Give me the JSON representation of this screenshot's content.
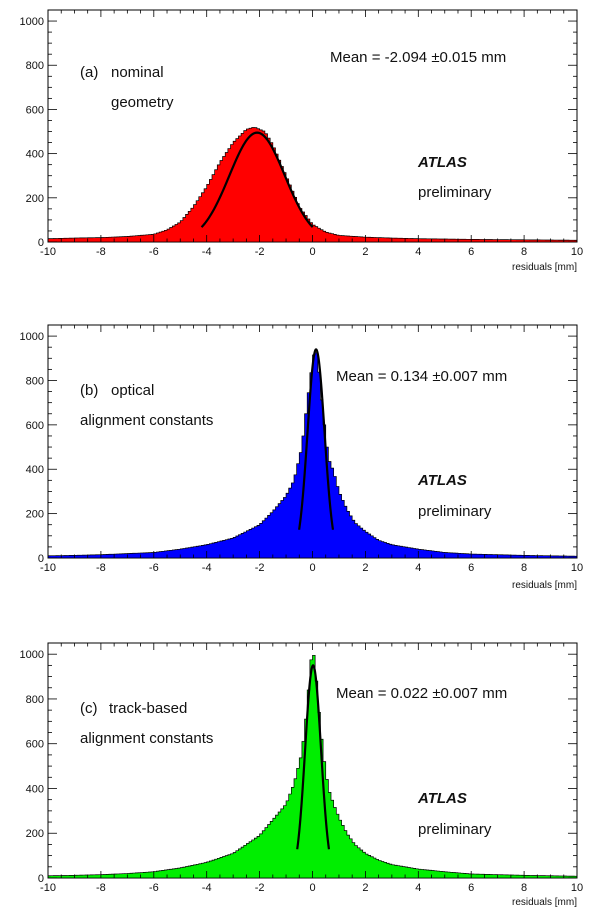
{
  "chart_data": [
    {
      "type": "histogram",
      "panel_label": "(a)",
      "label_line1": "nominal",
      "label_line2": "geometry",
      "mean_text": "Mean = -2.094 ±0.015 mm",
      "atlas_text": "ATLAS",
      "preliminary_text": "preliminary",
      "xlabel": "residuals  [mm]",
      "ylabel": "",
      "xlim": [
        -10,
        10
      ],
      "ylim": [
        0,
        1050
      ],
      "xticks": [
        "-10",
        "-8",
        "-6",
        "-4",
        "-2",
        "0",
        "2",
        "4",
        "6",
        "8",
        "10"
      ],
      "yticks": [
        "0",
        "200",
        "400",
        "600",
        "800",
        "1000"
      ],
      "fill_color": "#ff0000",
      "series": [
        {
          "x": [
            -10,
            -9,
            -8,
            -7,
            -6,
            -5.5,
            -5,
            -4.5,
            -4,
            -3.5,
            -3,
            -2.5,
            -2.2,
            -2,
            -1.8,
            -1.5,
            -1,
            -0.5,
            0,
            0.5,
            1,
            2,
            3,
            4,
            6,
            8,
            10
          ],
          "y": [
            15,
            18,
            20,
            25,
            35,
            55,
            90,
            160,
            250,
            360,
            450,
            510,
            520,
            510,
            500,
            440,
            300,
            160,
            80,
            45,
            30,
            22,
            18,
            15,
            12,
            10,
            8
          ]
        }
      ],
      "fit": {
        "mean": -2.094,
        "sigma": 1.05,
        "amplitude": 495
      }
    },
    {
      "type": "histogram",
      "panel_label": "(b)",
      "label_line1": "optical",
      "label_line2": "alignment constants",
      "mean_text": "Mean = 0.134 ±0.007 mm",
      "atlas_text": "ATLAS",
      "preliminary_text": "preliminary",
      "xlabel": "residuals  [mm]",
      "ylabel": "",
      "xlim": [
        -10,
        10
      ],
      "ylim": [
        0,
        1050
      ],
      "xticks": [
        "-10",
        "-8",
        "-6",
        "-4",
        "-2",
        "0",
        "2",
        "4",
        "6",
        "8",
        "10"
      ],
      "yticks": [
        "0",
        "200",
        "400",
        "600",
        "800",
        "1000"
      ],
      "fill_color": "#0000ff",
      "series": [
        {
          "x": [
            -10,
            -9,
            -8,
            -7,
            -6,
            -5,
            -4,
            -3,
            -2.5,
            -2,
            -1.5,
            -1,
            -0.7,
            -0.4,
            -0.2,
            0,
            0.1,
            0.2,
            0.4,
            0.6,
            0.8,
            1,
            1.3,
            1.6,
            2,
            2.5,
            3,
            4,
            5,
            6,
            8,
            10
          ],
          "y": [
            10,
            12,
            15,
            20,
            25,
            40,
            60,
            90,
            120,
            150,
            210,
            280,
            350,
            500,
            700,
            880,
            950,
            900,
            650,
            450,
            390,
            300,
            220,
            160,
            120,
            80,
            60,
            40,
            25,
            18,
            12,
            8
          ]
        }
      ],
      "fit": {
        "mean": 0.134,
        "sigma": 0.32,
        "amplitude": 940
      }
    },
    {
      "type": "histogram",
      "panel_label": "(c)",
      "label_line1": "track-based",
      "label_line2": "alignment constants",
      "mean_text": "Mean = 0.022 ±0.007 mm",
      "atlas_text": "ATLAS",
      "preliminary_text": "preliminary",
      "xlabel": "residuals  [mm]",
      "ylabel": "",
      "xlim": [
        -10,
        10
      ],
      "ylim": [
        0,
        1050
      ],
      "xticks": [
        "-10",
        "-8",
        "-6",
        "-4",
        "-2",
        "0",
        "2",
        "4",
        "6",
        "8",
        "10"
      ],
      "yticks": [
        "0",
        "200",
        "400",
        "600",
        "800",
        "1000"
      ],
      "fill_color": "#00ee00",
      "series": [
        {
          "x": [
            -10,
            -9,
            -8,
            -7,
            -6,
            -5,
            -4,
            -3,
            -2.5,
            -2,
            -1.5,
            -1,
            -0.7,
            -0.4,
            -0.2,
            -0.1,
            0,
            0.1,
            0.2,
            0.4,
            0.6,
            0.8,
            1,
            1.3,
            1.6,
            2,
            2.5,
            3,
            4,
            5,
            6,
            8,
            10
          ],
          "y": [
            10,
            12,
            15,
            20,
            28,
            45,
            70,
            110,
            150,
            190,
            260,
            330,
            420,
            560,
            760,
            920,
            1030,
            960,
            800,
            560,
            400,
            330,
            270,
            200,
            150,
            110,
            80,
            60,
            40,
            28,
            18,
            12,
            8
          ]
        }
      ],
      "fit": {
        "mean": 0.022,
        "sigma": 0.3,
        "amplitude": 950
      }
    }
  ]
}
